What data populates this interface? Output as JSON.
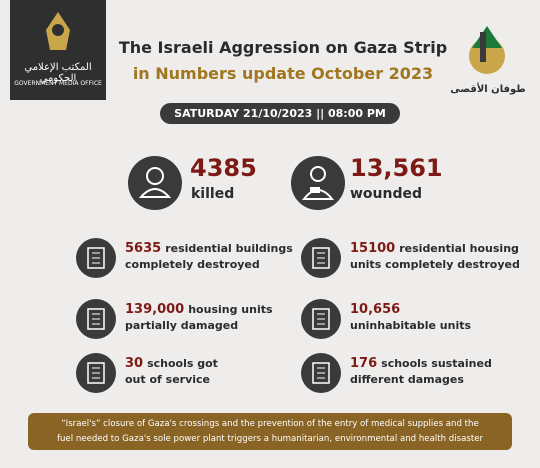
{
  "header": {
    "logo_left": {
      "arabic": "المكتب الإعلامي الحكومي",
      "english": "GOVERNMENT MEDIA OFFICE"
    },
    "title_line1": "The Israeli Aggression on Gaza Strip",
    "title_line2": "in Numbers update October 2023",
    "logo_right": "طوفان الأقصى"
  },
  "date": "SATURDAY 21/10/2023 || 08:00 PM",
  "headline_stats": [
    {
      "number": "4385",
      "label": "killed"
    },
    {
      "number": "13,561",
      "label": "wounded"
    }
  ],
  "items": [
    {
      "number": "5635",
      "text_line1": "residential buildings",
      "text_line2": "completely destroyed"
    },
    {
      "number": "15100",
      "text_line1": "residential housing",
      "text_line2": "units completely destroyed"
    },
    {
      "number": "139,000",
      "text_line1": "housing units",
      "text_line2": "partially damaged"
    },
    {
      "number": "10,656",
      "text_line2": "uninhabitable units"
    },
    {
      "number": "30",
      "text_line1": "schools got",
      "text_line2": "out of service"
    },
    {
      "number": "176",
      "text_line1": "schools sustained",
      "text_line2": "different damages"
    }
  ],
  "footer": {
    "line1": "“Israel's” closure of Gaza's crossings and the prevention of the entry of medical supplies and the",
    "line2": "fuel needed to Gaza's sole power plant triggers a humanitarian, environmental and health disaster"
  }
}
